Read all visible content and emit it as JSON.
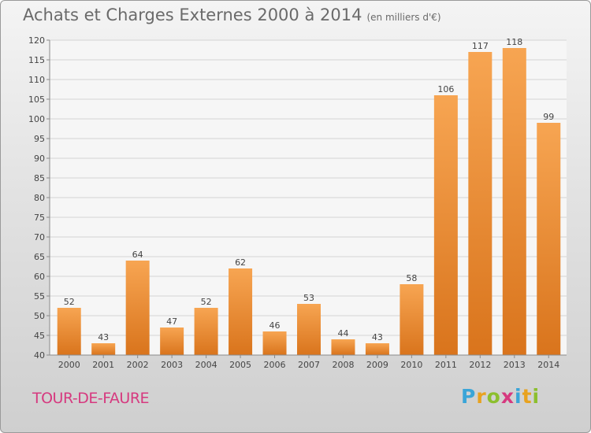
{
  "header": {
    "title": "Achats et Charges Externes 2000 à 2014",
    "unit": "(en milliers d'€)"
  },
  "footer": {
    "place": "TOUR-DE-FAURE",
    "brand": "Proxiti"
  },
  "colors": {
    "bar_top": "#f7a552",
    "bar_bottom": "#d9741c",
    "place": "#d6397f"
  },
  "chart_data": {
    "type": "bar",
    "categories": [
      "2000",
      "2001",
      "2002",
      "2003",
      "2004",
      "2005",
      "2006",
      "2007",
      "2008",
      "2009",
      "2010",
      "2011",
      "2012",
      "2013",
      "2014"
    ],
    "values": [
      52,
      43,
      64,
      47,
      52,
      62,
      46,
      53,
      44,
      43,
      58,
      106,
      117,
      118,
      99
    ],
    "ylim": [
      40,
      120
    ],
    "yticks": [
      40,
      45,
      50,
      55,
      60,
      65,
      70,
      75,
      80,
      85,
      90,
      95,
      100,
      105,
      110,
      115,
      120
    ],
    "grid": true,
    "title": "Achats et Charges Externes 2000 à 2014",
    "xlabel": "",
    "ylabel": ""
  }
}
